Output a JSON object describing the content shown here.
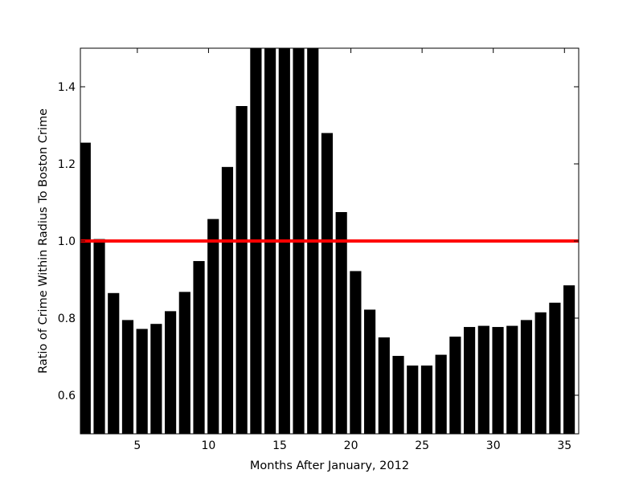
{
  "chart_data": {
    "type": "bar",
    "title": "",
    "xlabel": "Months After January, 2012",
    "ylabel": "Ratio of Crime Within Radius To Boston Crime",
    "xlim": [
      1,
      36
    ],
    "ylim": [
      0.5,
      1.5
    ],
    "xticks": [
      5,
      10,
      15,
      20,
      25,
      30,
      35
    ],
    "yticks": [
      0.6,
      0.8,
      1.0,
      1.2,
      1.4
    ],
    "ytick_labels": [
      "0.6",
      "0.8",
      "1.0",
      "1.2",
      "1.4"
    ],
    "bar_color": "#000000",
    "grid": false,
    "reference_line": {
      "y": 1.0,
      "color": "#ff0000"
    },
    "x": [
      1,
      2,
      3,
      4,
      5,
      6,
      7,
      8,
      9,
      10,
      11,
      12,
      13,
      14,
      15,
      16,
      17,
      18,
      19,
      20,
      21,
      22,
      23,
      24,
      25,
      26,
      27,
      28,
      29,
      30,
      31,
      32,
      33,
      34,
      35
    ],
    "values": [
      1.255,
      1.005,
      0.865,
      0.795,
      0.772,
      0.785,
      0.818,
      0.868,
      0.948,
      1.057,
      1.192,
      1.35,
      1.6,
      1.6,
      1.6,
      1.6,
      1.6,
      1.28,
      1.075,
      0.922,
      0.822,
      0.75,
      0.702,
      0.677,
      0.677,
      0.705,
      0.752,
      0.777,
      0.78,
      0.777,
      0.78,
      0.795,
      0.815,
      0.84,
      0.885
    ]
  }
}
